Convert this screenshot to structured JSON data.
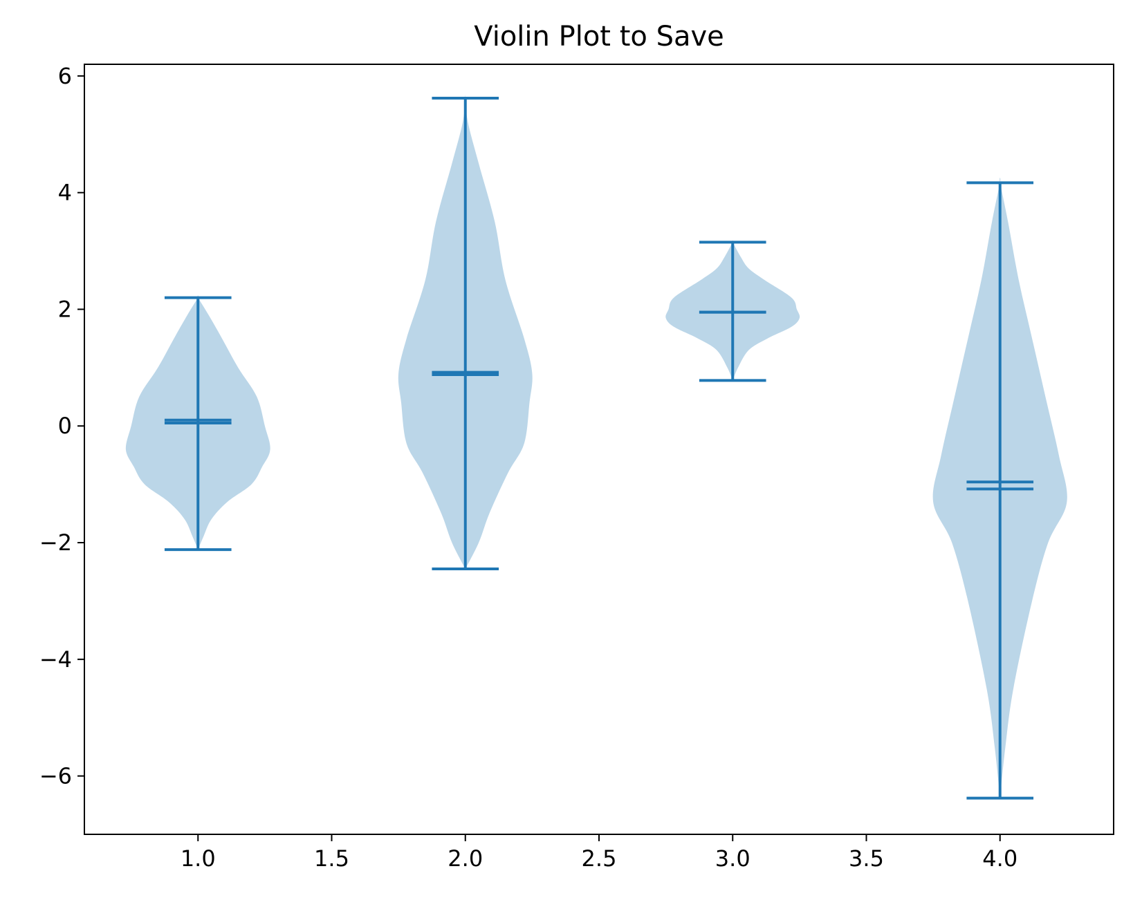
{
  "chart_data": {
    "type": "violin",
    "title": "Violin Plot to Save",
    "xlabel": "",
    "ylabel": "",
    "xlim": [
      0.575,
      4.425
    ],
    "ylim": [
      -7.0,
      6.2
    ],
    "xticks": [
      1.0,
      1.5,
      2.0,
      2.5,
      3.0,
      3.5,
      4.0
    ],
    "xtick_labels": [
      "1.0",
      "1.5",
      "2.0",
      "2.5",
      "3.0",
      "3.5",
      "4.0"
    ],
    "yticks": [
      -6,
      -4,
      -2,
      0,
      2,
      4,
      6
    ],
    "ytick_labels": [
      "−6",
      "−4",
      "−2",
      "0",
      "2",
      "4",
      "6"
    ],
    "grid": false,
    "colors": {
      "body": "#1f77b4",
      "lines": "#1f77b4"
    },
    "violins": [
      {
        "position": 1,
        "min": -2.12,
        "max": 2.2,
        "mean": 0.1,
        "median": 0.05,
        "profile": [
          [
            -2.12,
            0
          ],
          [
            -1.9,
            0.02
          ],
          [
            -1.6,
            0.05
          ],
          [
            -1.3,
            0.11
          ],
          [
            -1.0,
            0.2
          ],
          [
            -0.7,
            0.24
          ],
          [
            -0.4,
            0.27
          ],
          [
            0.0,
            0.25
          ],
          [
            0.5,
            0.22
          ],
          [
            1.0,
            0.15
          ],
          [
            1.5,
            0.09
          ],
          [
            1.9,
            0.04
          ],
          [
            2.2,
            0
          ]
        ]
      },
      {
        "position": 2,
        "min": -2.45,
        "max": 5.62,
        "mean": 0.92,
        "median": 0.88,
        "profile": [
          [
            -2.45,
            0
          ],
          [
            -2.0,
            0.05
          ],
          [
            -1.5,
            0.09
          ],
          [
            -0.8,
            0.16
          ],
          [
            -0.3,
            0.22
          ],
          [
            0.4,
            0.24
          ],
          [
            0.9,
            0.25
          ],
          [
            1.5,
            0.22
          ],
          [
            2.5,
            0.15
          ],
          [
            3.5,
            0.11
          ],
          [
            4.5,
            0.05
          ],
          [
            5.2,
            0.01
          ],
          [
            5.62,
            0
          ]
        ]
      },
      {
        "position": 3,
        "min": 0.78,
        "max": 3.15,
        "mean": 1.95,
        "median": 1.95,
        "profile": [
          [
            0.78,
            0
          ],
          [
            1.0,
            0.02
          ],
          [
            1.3,
            0.06
          ],
          [
            1.5,
            0.13
          ],
          [
            1.7,
            0.22
          ],
          [
            1.85,
            0.25
          ],
          [
            2.0,
            0.24
          ],
          [
            2.2,
            0.22
          ],
          [
            2.5,
            0.12
          ],
          [
            2.7,
            0.06
          ],
          [
            2.9,
            0.03
          ],
          [
            3.15,
            0
          ]
        ]
      },
      {
        "position": 4,
        "min": -6.38,
        "max": 4.17,
        "mean": -1.08,
        "median": -0.96,
        "profile": [
          [
            -6.38,
            0
          ],
          [
            -5.5,
            0.02
          ],
          [
            -4.5,
            0.05
          ],
          [
            -3.0,
            0.12
          ],
          [
            -2.0,
            0.18
          ],
          [
            -1.3,
            0.25
          ],
          [
            -0.5,
            0.22
          ],
          [
            0.5,
            0.17
          ],
          [
            1.5,
            0.12
          ],
          [
            2.5,
            0.07
          ],
          [
            3.5,
            0.03
          ],
          [
            4.17,
            0
          ]
        ]
      }
    ]
  }
}
